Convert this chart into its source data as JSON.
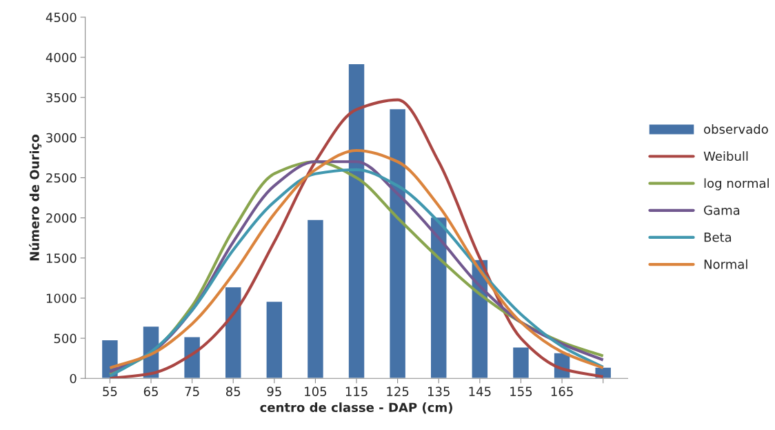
{
  "chart_data": {
    "type": "bar",
    "xlabel": "centro de classe - DAP (cm)",
    "ylabel": "Número de Ouriço",
    "categories": [
      "55",
      "65",
      "75",
      "85",
      "95",
      "105",
      "115",
      "125",
      "135",
      "145",
      "155",
      "165",
      null
    ],
    "ylim": [
      0,
      4500
    ],
    "yticks": [
      0,
      500,
      1000,
      1500,
      2000,
      2500,
      3000,
      3500,
      4000,
      4500
    ],
    "grid": false,
    "legend": "right",
    "series": [
      {
        "name": "observado",
        "type": "bar",
        "color": "#4572a7",
        "values": [
          480,
          650,
          520,
          1140,
          960,
          1980,
          3920,
          3360,
          2010,
          1480,
          390,
          320,
          140
        ]
      },
      {
        "name": "Weibull",
        "type": "line",
        "color": "#aa4643",
        "values": [
          0,
          60,
          300,
          800,
          1700,
          2700,
          3350,
          3470,
          2700,
          1500,
          500,
          120,
          20
        ]
      },
      {
        "name": "log normal",
        "type": "line",
        "color": "#89a54e",
        "values": [
          50,
          320,
          900,
          1850,
          2550,
          2700,
          2500,
          2000,
          1500,
          1050,
          700,
          450,
          280
        ]
      },
      {
        "name": "Gama",
        "type": "line",
        "color": "#71588f",
        "values": [
          80,
          320,
          850,
          1700,
          2400,
          2700,
          2700,
          2300,
          1750,
          1150,
          700,
          430,
          230
        ]
      },
      {
        "name": "Beta",
        "type": "line",
        "color": "#4198af",
        "values": [
          30,
          330,
          850,
          1600,
          2200,
          2550,
          2600,
          2400,
          1950,
          1350,
          800,
          400,
          140
        ]
      },
      {
        "name": "Normal",
        "type": "line",
        "color": "#db843d",
        "values": [
          130,
          300,
          680,
          1300,
          2050,
          2600,
          2840,
          2700,
          2150,
          1350,
          700,
          330,
          130
        ]
      }
    ]
  }
}
